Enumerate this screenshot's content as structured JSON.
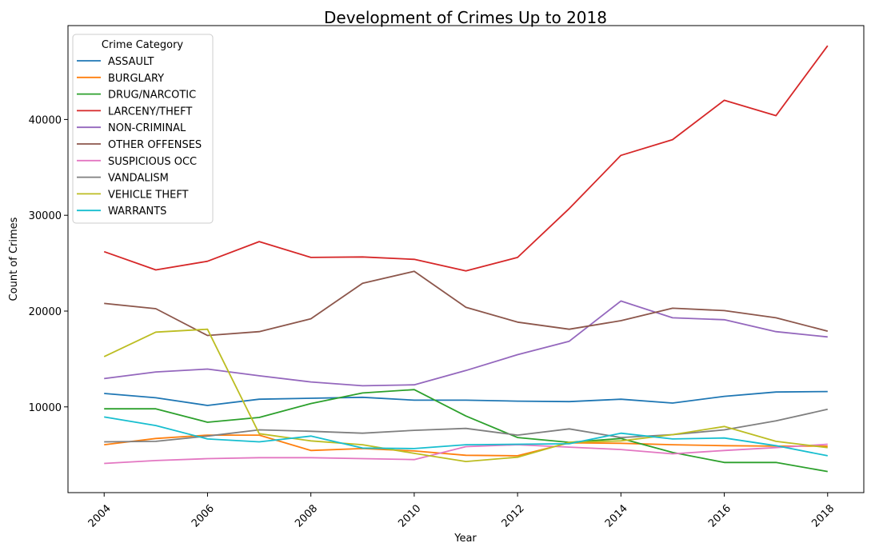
{
  "chart_data": {
    "type": "line",
    "title": "Development of Crimes Up to 2018",
    "xlabel": "Year",
    "ylabel": "Count of Crimes",
    "legend_title": "Crime Category",
    "legend_position": "top-left",
    "grid": false,
    "x": [
      2004,
      2005,
      2006,
      2007,
      2008,
      2009,
      2010,
      2011,
      2012,
      2013,
      2014,
      2015,
      2016,
      2017,
      2018
    ],
    "xticks": [
      "2004",
      "2006",
      "2008",
      "2010",
      "2012",
      "2014",
      "2016",
      "2018"
    ],
    "yticks": [
      "10000",
      "20000",
      "30000",
      "40000"
    ],
    "xlim": [
      2003.3,
      2018.7
    ],
    "ylim": [
      1050,
      49800
    ],
    "series": [
      {
        "name": "ASSAULT",
        "color": "#1f77b4",
        "values": [
          11400,
          10950,
          10150,
          10800,
          10900,
          11000,
          10700,
          10700,
          10600,
          10550,
          10800,
          10400,
          11100,
          11550,
          11600
        ]
      },
      {
        "name": "BURGLARY",
        "color": "#ff7f0e",
        "values": [
          6050,
          6700,
          7050,
          7050,
          5450,
          5650,
          5400,
          4950,
          4900,
          6250,
          6200,
          6050,
          5950,
          5900,
          5900
        ]
      },
      {
        "name": "DRUG/NARCOTIC",
        "color": "#2ca02c",
        "values": [
          9800,
          9800,
          8400,
          8900,
          10350,
          11450,
          11800,
          9050,
          6800,
          6300,
          6700,
          5250,
          4200,
          4200,
          3250
        ]
      },
      {
        "name": "LARCENY/THEFT",
        "color": "#d62728",
        "values": [
          26200,
          24300,
          25200,
          27250,
          25600,
          25650,
          25400,
          24200,
          25600,
          30700,
          36250,
          37900,
          42000,
          40400,
          47700
        ]
      },
      {
        "name": "NON-CRIMINAL",
        "color": "#9467bd",
        "values": [
          12950,
          13650,
          13950,
          13250,
          12600,
          12200,
          12300,
          13800,
          15450,
          16850,
          21050,
          19300,
          19100,
          17850,
          17300
        ]
      },
      {
        "name": "OTHER OFFENSES",
        "color": "#8c564b",
        "values": [
          20800,
          20250,
          17450,
          17850,
          19200,
          22900,
          24150,
          20400,
          18850,
          18100,
          19000,
          20300,
          20050,
          19300,
          17900
        ]
      },
      {
        "name": "SUSPICIOUS OCC",
        "color": "#e377c2",
        "values": [
          4100,
          4400,
          4600,
          4700,
          4700,
          4600,
          4500,
          5850,
          6050,
          5800,
          5550,
          5100,
          5450,
          5750,
          6100
        ]
      },
      {
        "name": "VANDALISM",
        "color": "#7f7f7f",
        "values": [
          6350,
          6400,
          6950,
          7600,
          7450,
          7250,
          7550,
          7750,
          7050,
          7700,
          6800,
          7100,
          7600,
          8550,
          9750
        ]
      },
      {
        "name": "VEHICLE THEFT",
        "color": "#bcbd22",
        "values": [
          15250,
          17800,
          18100,
          7200,
          6450,
          6050,
          5150,
          4300,
          4750,
          6300,
          6450,
          7100,
          7950,
          6400,
          5750
        ]
      },
      {
        "name": "WARRANTS",
        "color": "#17becf",
        "values": [
          8950,
          8050,
          6650,
          6350,
          6950,
          5700,
          5650,
          6050,
          6100,
          6150,
          7250,
          6650,
          6750,
          5950,
          4900
        ]
      }
    ]
  }
}
